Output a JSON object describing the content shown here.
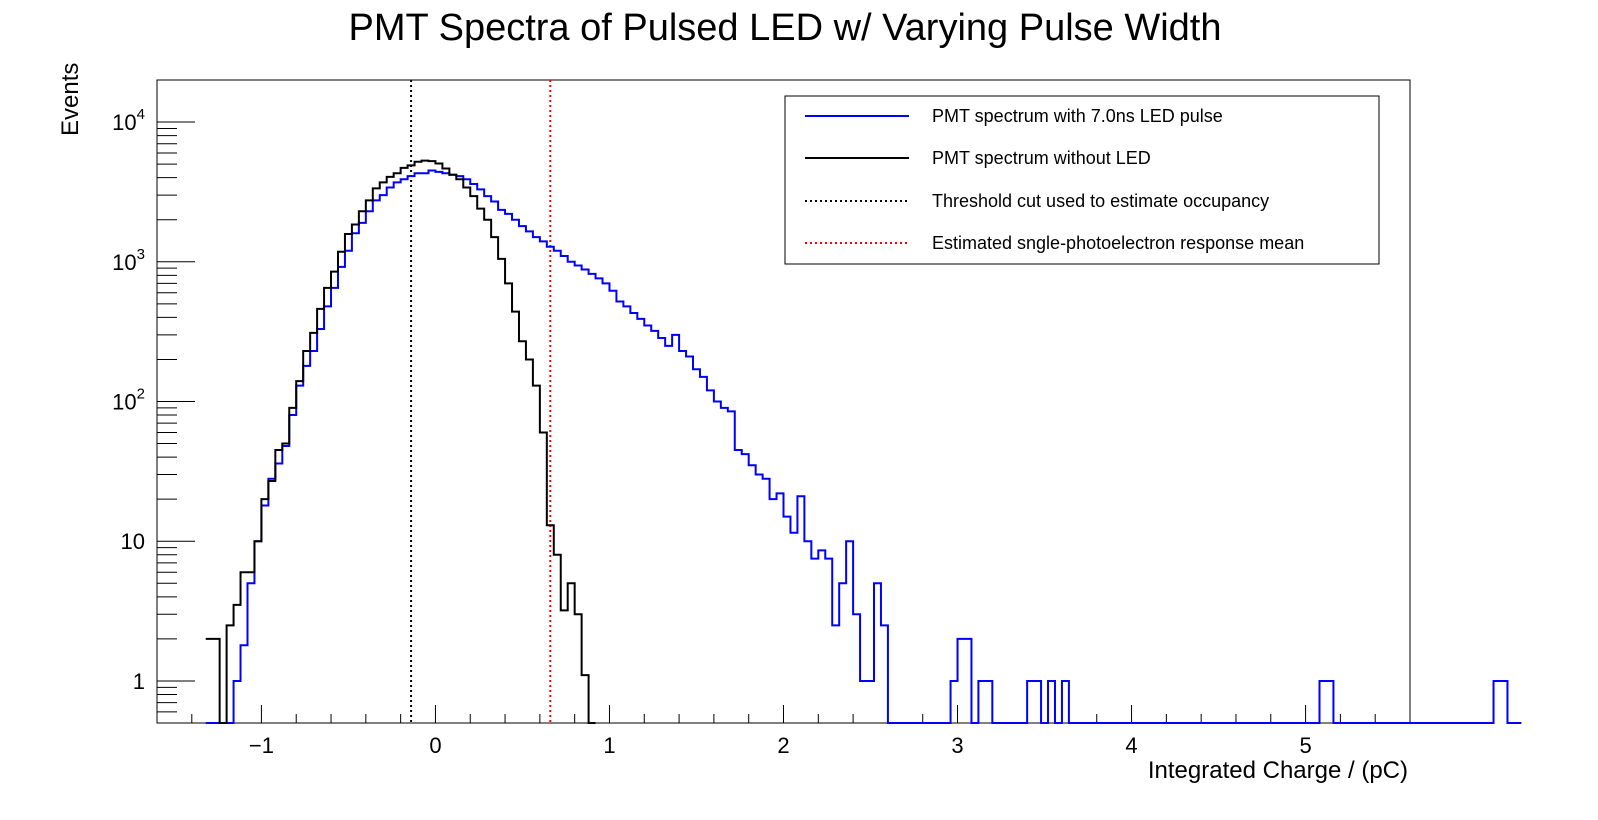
{
  "chart_data": {
    "type": "histogram",
    "title": "PMT Spectra of Pulsed LED w/ Varying Pulse Width",
    "xlabel": "Integrated Charge / (pC)",
    "ylabel": "Events",
    "xlim": [
      -1.6,
      5.6
    ],
    "ylim": [
      0.5,
      20000
    ],
    "yscale": "log",
    "grid": false,
    "legend_position": "top-right",
    "bin_width": 0.04,
    "x_start": -1.32,
    "x_ticks": [
      {
        "value": -1,
        "label": "−1"
      },
      {
        "value": 0,
        "label": "0"
      },
      {
        "value": 1,
        "label": "1"
      },
      {
        "value": 2,
        "label": "2"
      },
      {
        "value": 3,
        "label": "3"
      },
      {
        "value": 4,
        "label": "4"
      },
      {
        "value": 5,
        "label": "5"
      }
    ],
    "y_ticks": [
      {
        "value": 1,
        "base": "1",
        "exp": ""
      },
      {
        "value": 10,
        "base": "10",
        "exp": ""
      },
      {
        "value": 100,
        "base": "10",
        "exp": "2"
      },
      {
        "value": 1000,
        "base": "10",
        "exp": "3"
      },
      {
        "value": 10000,
        "base": "10",
        "exp": "4"
      }
    ],
    "series": [
      {
        "name": "PMT spectrum with 7.0ns  LED pulse",
        "color": "#0000ff",
        "style": "step",
        "values": [
          0,
          0,
          0,
          0.5,
          1,
          1.8,
          5,
          10,
          18,
          28,
          36,
          48,
          80,
          130,
          180,
          230,
          330,
          480,
          650,
          920,
          1200,
          1600,
          1900,
          2300,
          2750,
          3000,
          3400,
          3700,
          3900,
          4100,
          4300,
          4300,
          4500,
          4400,
          4300,
          4200,
          4100,
          3900,
          3600,
          3300,
          2950,
          2700,
          2350,
          2200,
          2000,
          1800,
          1650,
          1500,
          1400,
          1280,
          1200,
          1100,
          1000,
          940,
          880,
          820,
          760,
          700,
          620,
          520,
          480,
          430,
          390,
          350,
          320,
          285,
          250,
          300,
          230,
          210,
          170,
          150,
          120,
          100,
          90,
          85,
          45,
          42,
          35,
          30,
          28,
          20,
          22,
          15,
          11.5,
          21,
          10,
          7.5,
          8.6,
          7.5,
          2.5,
          5,
          10,
          3,
          1,
          1,
          5,
          2.5,
          0.5,
          0.5,
          0.5,
          0.5,
          0.5,
          0.5,
          0.5,
          0.5,
          0.5,
          1,
          2,
          2,
          0.5,
          1,
          1,
          0.5,
          0.5,
          0.5,
          0.5,
          0.5,
          1,
          1,
          0.5,
          1,
          0.5,
          1,
          0.5,
          0.5,
          0.5,
          0.5,
          0.5,
          0.5,
          0.5,
          0.5,
          0.5,
          0.5,
          0.5,
          0.5,
          0.5,
          0.5,
          0.5,
          0.5,
          0.5,
          0.5,
          0.5,
          0.5,
          0.5,
          0.5,
          0.5,
          0.5,
          0.5,
          0.5,
          0.5,
          0.5,
          0.5,
          0.5,
          0.5,
          0.5,
          0.5,
          0.5,
          0.5,
          0.5,
          1,
          1,
          0.5,
          0.5,
          0.5,
          0.5,
          0.5,
          0.5,
          0.5,
          0.5,
          0.5,
          0.5,
          0.5,
          0.5,
          0.5,
          0.5,
          0.5,
          0.5,
          0.5,
          0.5,
          0.5,
          0.5,
          0.5,
          0.5,
          0.5,
          1,
          1,
          0.5,
          0.5
        ]
      },
      {
        "name": "PMT spectrum without LED",
        "color": "#000000",
        "style": "step",
        "values": [
          2,
          2,
          0.5,
          2.5,
          3.5,
          6,
          6,
          10,
          20,
          27,
          45,
          50,
          90,
          140,
          230,
          310,
          460,
          650,
          850,
          1180,
          1580,
          1850,
          2300,
          2750,
          3350,
          3700,
          4050,
          4300,
          4700,
          4900,
          5200,
          5300,
          5250,
          5050,
          4650,
          4200,
          3900,
          3400,
          2950,
          2400,
          2000,
          1500,
          1050,
          700,
          440,
          270,
          200,
          130,
          60,
          13,
          8,
          3.2,
          5,
          3,
          1.1,
          0.5
        ]
      }
    ],
    "vlines": [
      {
        "name": "Threshold cut used to estimate occupancy",
        "x": -0.14,
        "color": "#000000",
        "style": "dotted"
      },
      {
        "name": "Estimated sngle-photoelectron response mean",
        "x": 0.66,
        "color": "#ff0000",
        "style": "dotted"
      }
    ]
  }
}
